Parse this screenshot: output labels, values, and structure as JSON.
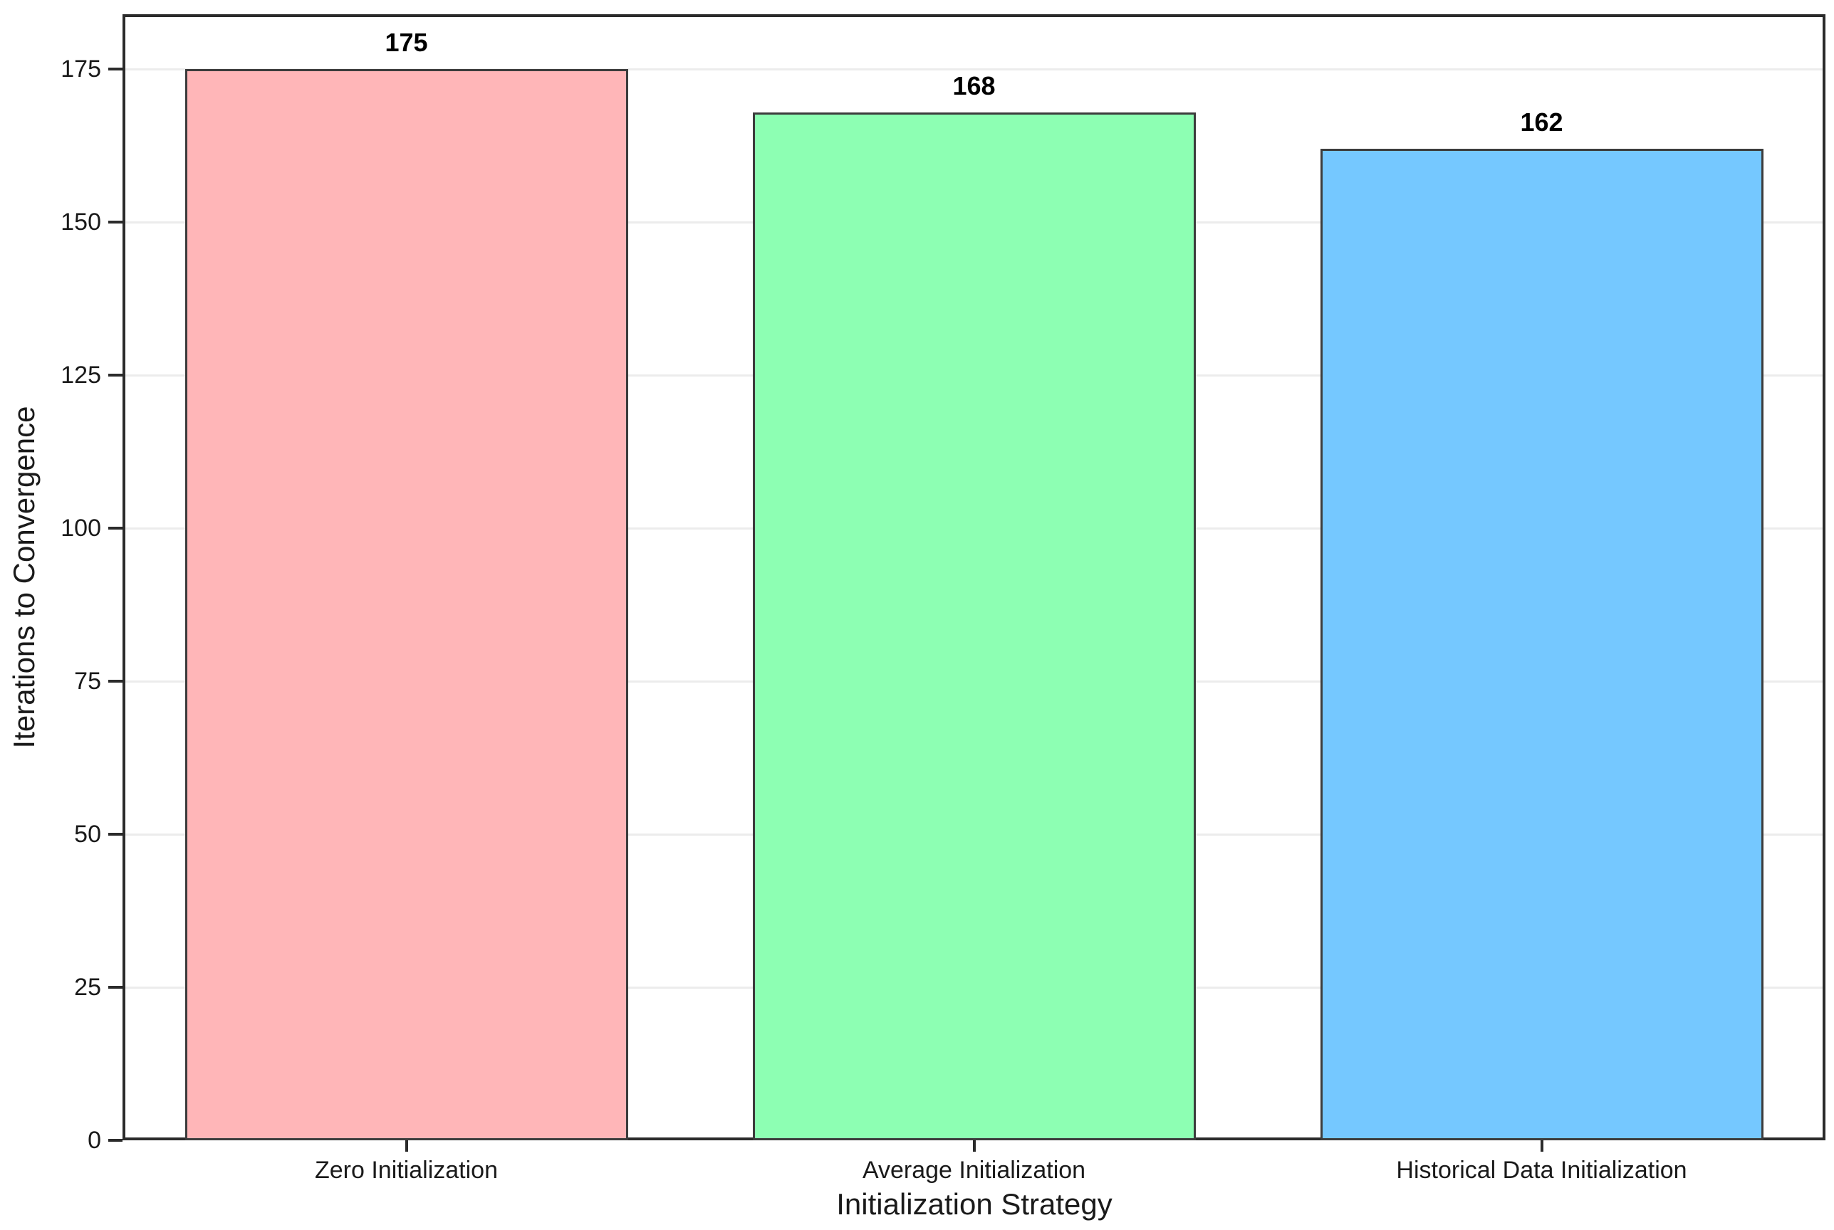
{
  "chart_data": {
    "type": "bar",
    "title": "",
    "xlabel": "Initialization Strategy",
    "ylabel": "Iterations to Convergence",
    "categories": [
      "Zero Initialization",
      "Average Initialization",
      "Historical Data Initialization"
    ],
    "values": [
      175,
      168,
      162
    ],
    "value_labels": [
      "175",
      "168",
      "162"
    ],
    "bar_colors": [
      "#ffb6b8",
      "#8dffb3",
      "#75c8ff"
    ],
    "bar_edge_color": "#3c3c3c",
    "yticks": [
      0,
      25,
      50,
      75,
      100,
      125,
      150,
      175
    ],
    "ylim": [
      0,
      184
    ],
    "grid": "horizontal",
    "grid_color": "#ececec",
    "spine_color": "#2b2b2b",
    "background": "#ffffff",
    "legend_position": "none"
  }
}
